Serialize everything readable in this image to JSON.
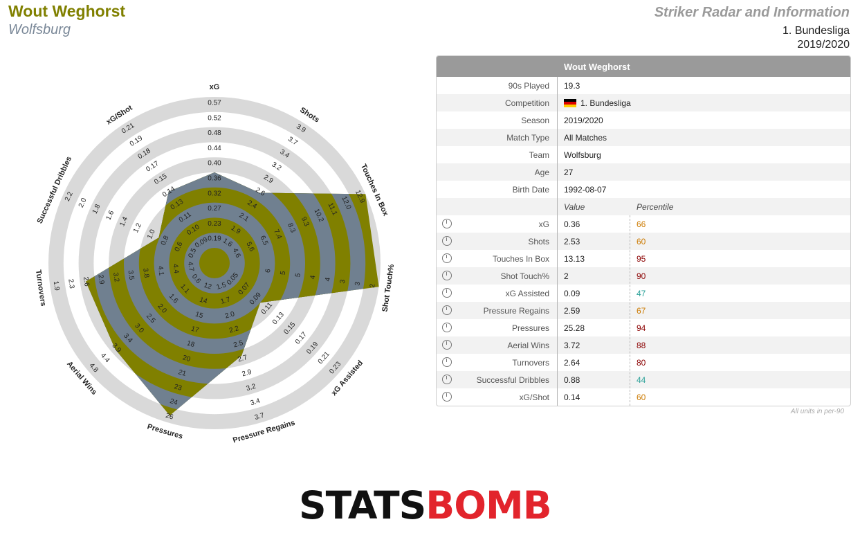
{
  "header": {
    "player": "Wout Weghorst",
    "team": "Wolfsburg",
    "title": "Striker Radar and Information",
    "competition": "1. Bundesliga",
    "season": "2019/2020"
  },
  "colors": {
    "olive": "#808000",
    "slate": "#708090",
    "ring": "#d9d9d9",
    "high": "#8b0000",
    "mid": "#cc7a00",
    "low": "#2aa198"
  },
  "chart_data": {
    "type": "radar",
    "metrics": [
      {
        "name": "xG",
        "ticks": [
          "0.19",
          "0.23",
          "0.27",
          "0.32",
          "0.36",
          "0.40",
          "0.44",
          "0.48",
          "0.52",
          "0.57"
        ],
        "lim": [
          0.15,
          0.57
        ],
        "value": 0.36
      },
      {
        "name": "Shots",
        "ticks": [
          "1.6",
          "1.9",
          "2.1",
          "2.4",
          "2.6",
          "2.9",
          "3.2",
          "3.4",
          "3.7",
          "3.9"
        ],
        "lim": [
          1.4,
          3.9
        ],
        "value": 2.53
      },
      {
        "name": "Touches In Box",
        "ticks": [
          "4.6",
          "5.6",
          "6.5",
          "7.4",
          "8.3",
          "9.3",
          "10.2",
          "11.1",
          "12.0",
          "12.9"
        ],
        "lim": [
          3.6,
          12.9
        ],
        "value": 13.13
      },
      {
        "name": "Shot Touch%",
        "ticks": [
          "6",
          "5",
          "5",
          "4",
          "4",
          "3",
          "3",
          "2"
        ],
        "lim": [
          6,
          2
        ],
        "value": 2
      },
      {
        "name": "xG Assisted",
        "ticks": [
          "0.05",
          "0.07",
          "0.09",
          "0.11",
          "0.13",
          "0.15",
          "0.17",
          "0.19",
          "0.21",
          "0.23"
        ],
        "lim": [
          0.03,
          0.23
        ],
        "value": 0.09
      },
      {
        "name": "Pressure Regains",
        "ticks": [
          "1.5",
          "1.7",
          "2.0",
          "2.2",
          "2.5",
          "2.7",
          "2.9",
          "3.2",
          "3.4",
          "3.7"
        ],
        "lim": [
          1.3,
          3.7
        ],
        "value": 2.59
      },
      {
        "name": "Pressures",
        "ticks": [
          "12",
          "14",
          "15",
          "17",
          "18",
          "20",
          "21",
          "23",
          "24",
          "26"
        ],
        "lim": [
          11,
          26
        ],
        "value": 25.28
      },
      {
        "name": "Aerial Wins",
        "ticks": [
          "0.6",
          "1.1",
          "1.6",
          "2.0",
          "2.5",
          "3.0",
          "3.4",
          "3.9",
          "4.4",
          "4.8"
        ],
        "lim": [
          0.1,
          4.8
        ],
        "value": 3.72
      },
      {
        "name": "Turnovers",
        "ticks": [
          "4.7",
          "4.4",
          "4.1",
          "3.8",
          "3.5",
          "3.2",
          "2.9",
          "2.6",
          "2.3",
          "1.9"
        ],
        "lim": [
          5.0,
          1.9
        ],
        "value": 2.64
      },
      {
        "name": "Successful Dribbles",
        "ticks": [
          "0.5",
          "0.6",
          "0.8",
          "1.0",
          "1.2",
          "1.4",
          "1.6",
          "1.8",
          "2.0",
          "2.2"
        ],
        "lim": [
          0.3,
          2.2
        ],
        "value": 0.88
      },
      {
        "name": "xG/Shot",
        "ticks": [
          "0.09",
          "0.10",
          "0.11",
          "0.13",
          "0.14",
          "0.15",
          "0.17",
          "0.18",
          "0.19",
          "0.21"
        ],
        "lim": [
          0.08,
          0.21
        ],
        "value": 0.14
      }
    ]
  },
  "table": {
    "header": "Wout Weghorst",
    "info": [
      {
        "label": "90s Played",
        "value": "19.3"
      },
      {
        "label": "Competition",
        "value": "1. Bundesliga",
        "flag": true
      },
      {
        "label": "Season",
        "value": "2019/2020"
      },
      {
        "label": "Match Type",
        "value": "All Matches"
      },
      {
        "label": "Team",
        "value": "Wolfsburg"
      },
      {
        "label": "Age",
        "value": "27"
      },
      {
        "label": "Birth Date",
        "value": "1992-08-07"
      }
    ],
    "col_value": "Value",
    "col_percentile": "Percentile",
    "stats": [
      {
        "label": "xG",
        "value": "0.36",
        "pct": "66",
        "color": "#cc7a00"
      },
      {
        "label": "Shots",
        "value": "2.53",
        "pct": "60",
        "color": "#cc7a00"
      },
      {
        "label": "Touches In Box",
        "value": "13.13",
        "pct": "95",
        "color": "#8b0000"
      },
      {
        "label": "Shot Touch%",
        "value": "2",
        "pct": "90",
        "color": "#8b0000"
      },
      {
        "label": "xG Assisted",
        "value": "0.09",
        "pct": "47",
        "color": "#2aa198"
      },
      {
        "label": "Pressure Regains",
        "value": "2.59",
        "pct": "67",
        "color": "#cc7a00"
      },
      {
        "label": "Pressures",
        "value": "25.28",
        "pct": "94",
        "color": "#8b0000"
      },
      {
        "label": "Aerial Wins",
        "value": "3.72",
        "pct": "88",
        "color": "#8b0000"
      },
      {
        "label": "Turnovers",
        "value": "2.64",
        "pct": "80",
        "color": "#8b0000"
      },
      {
        "label": "Successful Dribbles",
        "value": "0.88",
        "pct": "44",
        "color": "#2aa198"
      },
      {
        "label": "xG/Shot",
        "value": "0.14",
        "pct": "60",
        "color": "#cc7a00"
      }
    ],
    "footnote": "All units in per-90"
  },
  "logo": {
    "part1": "STATS",
    "part2": "BOMB"
  }
}
